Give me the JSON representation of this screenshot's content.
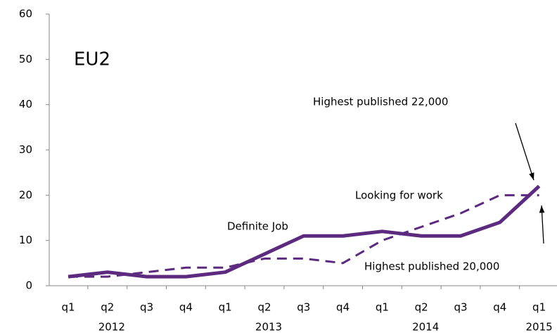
{
  "chart_data": {
    "type": "line",
    "title": "EU2",
    "categories": [
      "q1",
      "q2",
      "q3",
      "q4",
      "q1",
      "q2",
      "q3",
      "q4",
      "q1",
      "q2",
      "q3",
      "q4",
      "q1"
    ],
    "year_labels": [
      null,
      "2012",
      null,
      null,
      null,
      "2013",
      null,
      null,
      null,
      "2014",
      null,
      null,
      "2015"
    ],
    "series": [
      {
        "name": "Definite Job",
        "color": "#5c2a7e",
        "style": "solid",
        "values": [
          2,
          3,
          2,
          2,
          3,
          7,
          11,
          11,
          12,
          11,
          11,
          14,
          22
        ]
      },
      {
        "name": "Looking for work",
        "color": "#5c2a7e",
        "style": "dashed",
        "values": [
          2,
          2,
          3,
          4,
          4,
          6,
          6,
          5,
          10,
          13,
          16,
          20,
          20
        ]
      }
    ],
    "annotations": [
      "Highest published  22,000",
      "Highest published  20,000"
    ],
    "ylim": [
      0,
      60
    ],
    "yticks": [
      0,
      10,
      20,
      30,
      40,
      50,
      60
    ],
    "grid": false
  }
}
